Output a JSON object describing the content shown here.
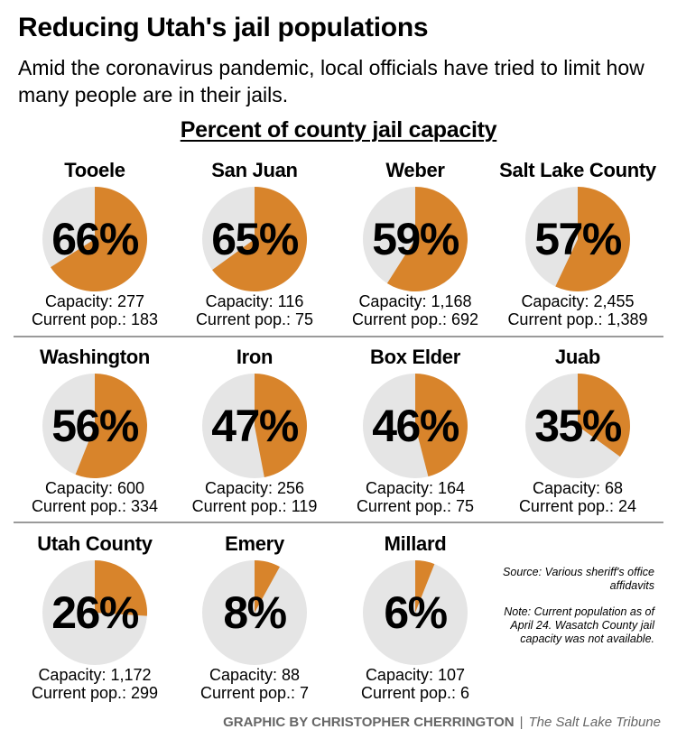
{
  "header": {
    "title": "Reducing Utah's jail populations",
    "subtitle": "Amid the coronavirus pandemic, local officials have tried to limit how many people are in their jails."
  },
  "section_heading": "Percent of county jail capacity",
  "labels": {
    "capacity": "Capacity:",
    "current": "Current pop.:"
  },
  "colors": {
    "filled": "#D8842B",
    "empty": "#E5E5E5"
  },
  "chart_data": {
    "type": "pie",
    "title": "Percent of county jail capacity",
    "unit": "percent",
    "counties": [
      {
        "name": "Tooele",
        "percent": 66,
        "percent_label": "66%",
        "capacity": "277",
        "current": "183"
      },
      {
        "name": "San Juan",
        "percent": 65,
        "percent_label": "65%",
        "capacity": "116",
        "current": "75"
      },
      {
        "name": "Weber",
        "percent": 59,
        "percent_label": "59%",
        "capacity": "1,168",
        "current": "692"
      },
      {
        "name": "Salt Lake County",
        "percent": 57,
        "percent_label": "57%",
        "capacity": "2,455",
        "current": "1,389"
      },
      {
        "name": "Washington",
        "percent": 56,
        "percent_label": "56%",
        "capacity": "600",
        "current": "334"
      },
      {
        "name": "Iron",
        "percent": 47,
        "percent_label": "47%",
        "capacity": "256",
        "current": "119"
      },
      {
        "name": "Box Elder",
        "percent": 46,
        "percent_label": "46%",
        "capacity": "164",
        "current": "75"
      },
      {
        "name": "Juab",
        "percent": 35,
        "percent_label": "35%",
        "capacity": "68",
        "current": "24"
      },
      {
        "name": "Utah County",
        "percent": 26,
        "percent_label": "26%",
        "capacity": "1,172",
        "current": "299"
      },
      {
        "name": "Emery",
        "percent": 8,
        "percent_label": "8%",
        "capacity": "88",
        "current": "7"
      },
      {
        "name": "Millard",
        "percent": 6,
        "percent_label": "6%",
        "capacity": "107",
        "current": "6"
      }
    ]
  },
  "notes": {
    "source": "Source: Various sheriff's office affidavits",
    "note": "Note: Current population as of April 24. Wasatch County jail capacity was not available."
  },
  "credit": {
    "graphic": "GRAPHIC BY CHRISTOPHER CHERRINGTON",
    "separator": "|",
    "publication": "The Salt Lake Tribune"
  }
}
